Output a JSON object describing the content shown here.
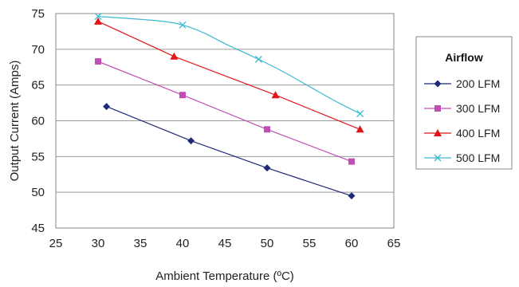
{
  "chart_data": {
    "type": "line",
    "title": "",
    "xlabel": "Ambient Temperature (ºC)",
    "ylabel": "Output Current (Amps)",
    "xlim": [
      25,
      65
    ],
    "ylim": [
      45,
      75
    ],
    "xticks": [
      25,
      30,
      35,
      40,
      45,
      50,
      55,
      60,
      65
    ],
    "yticks": [
      45,
      50,
      55,
      60,
      65,
      70,
      75
    ],
    "grid": "horizontal",
    "legend": {
      "title": "Airflow",
      "position": "right"
    },
    "series": [
      {
        "name": "200 LFM",
        "color": "#1f2a78",
        "marker": "diamond",
        "x": [
          31,
          41,
          50,
          60
        ],
        "y": [
          62.0,
          57.2,
          53.4,
          49.5
        ]
      },
      {
        "name": "300 LFM",
        "color": "#c04fb5",
        "marker": "square",
        "x": [
          30,
          40,
          50,
          60
        ],
        "y": [
          68.3,
          63.6,
          58.8,
          54.3
        ]
      },
      {
        "name": "400 LFM",
        "color": "#e3131a",
        "marker": "triangle",
        "x": [
          30,
          39,
          51,
          61
        ],
        "y": [
          73.9,
          69.0,
          63.6,
          58.8
        ]
      },
      {
        "name": "500 LFM",
        "color": "#3cb9cf",
        "marker": "x",
        "smooth": true,
        "x": [
          30,
          37,
          40,
          42.5,
          45,
          49,
          52,
          55,
          58,
          61
        ],
        "y": [
          74.6,
          74.0,
          73.4,
          72.3,
          70.8,
          68.6,
          66.8,
          64.8,
          62.8,
          61.0
        ]
      }
    ],
    "marked_points": {
      "500 LFM": [
        0,
        2,
        5,
        9
      ]
    }
  }
}
